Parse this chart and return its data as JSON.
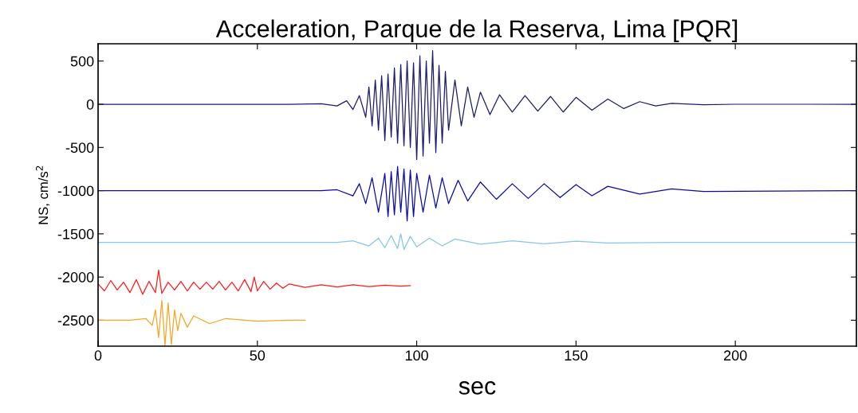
{
  "chart_data": {
    "type": "line",
    "title": "Acceleration, Parque de la Reserva, Lima [PQR]",
    "xlabel": "sec",
    "ylabel": "NS, cm/s$^{2}$",
    "xlim": [
      0,
      238
    ],
    "ylim": [
      -2800,
      700
    ],
    "xticks": [
      0,
      50,
      100,
      150,
      200
    ],
    "yticks": [
      500,
      0,
      -500,
      -1000,
      -1500,
      -2000,
      -2500
    ],
    "grid": false,
    "marker": "none",
    "line_style": "solid",
    "series": [
      {
        "color": "#1b1b6b",
        "x": [
          0,
          60,
          70,
          75,
          78,
          80,
          82,
          84,
          85,
          86,
          87,
          88,
          89,
          90,
          91,
          92,
          93,
          94,
          95,
          96,
          97,
          98,
          99,
          100,
          101,
          102,
          103,
          104,
          105,
          106,
          107,
          108,
          109,
          110,
          112,
          114,
          116,
          118,
          120,
          123,
          126,
          130,
          134,
          138,
          142,
          146,
          150,
          155,
          160,
          165,
          170,
          175,
          180,
          190,
          200,
          238
        ],
        "values": [
          0,
          0,
          5,
          -20,
          40,
          -60,
          100,
          -150,
          200,
          -250,
          280,
          -300,
          330,
          -420,
          350,
          -380,
          420,
          -450,
          460,
          -480,
          500,
          -500,
          480,
          -640,
          560,
          -600,
          500,
          -450,
          620,
          -560,
          450,
          -450,
          380,
          -300,
          280,
          -250,
          200,
          -150,
          140,
          -120,
          110,
          -90,
          100,
          -80,
          90,
          -90,
          80,
          -70,
          60,
          -50,
          30,
          -20,
          10,
          -5,
          0,
          0
        ]
      },
      {
        "color": "#0a0aa8",
        "x": [
          0,
          70,
          75,
          80,
          82,
          84,
          86,
          88,
          90,
          91,
          92,
          93,
          94,
          95,
          96,
          97,
          98,
          99,
          100,
          102,
          104,
          106,
          108,
          110,
          113,
          116,
          120,
          125,
          130,
          135,
          140,
          145,
          150,
          155,
          160,
          170,
          180,
          190,
          238
        ],
        "values": [
          -1000,
          -1000,
          -990,
          -1060,
          -920,
          -1150,
          -850,
          -1250,
          -800,
          -1300,
          -780,
          -1280,
          -720,
          -1250,
          -750,
          -1350,
          -760,
          -1300,
          -800,
          -1250,
          -820,
          -1200,
          -850,
          -1150,
          -880,
          -1120,
          -900,
          -1100,
          -920,
          -1090,
          -920,
          -1080,
          -930,
          -1060,
          -950,
          -1040,
          -980,
          -1010,
          -1000
        ]
      },
      {
        "color": "#87c6e6",
        "x": [
          0,
          75,
          80,
          85,
          88,
          90,
          92,
          94,
          95,
          96,
          98,
          100,
          104,
          108,
          112,
          120,
          130,
          140,
          150,
          160,
          180,
          238
        ],
        "values": [
          -1600,
          -1600,
          -1580,
          -1640,
          -1550,
          -1660,
          -1520,
          -1670,
          -1500,
          -1680,
          -1530,
          -1650,
          -1550,
          -1640,
          -1560,
          -1620,
          -1580,
          -1615,
          -1585,
          -1605,
          -1600,
          -1600
        ]
      },
      {
        "color": "#ff1a1a",
        "x": [
          0,
          2,
          4,
          6,
          8,
          10,
          12,
          14,
          16,
          18,
          19,
          20,
          22,
          24,
          26,
          28,
          30,
          32,
          34,
          36,
          38,
          40,
          42,
          44,
          46,
          48,
          49,
          50,
          52,
          54,
          56,
          58,
          60,
          65,
          70,
          75,
          80,
          85,
          90,
          95,
          98
        ],
        "values": [
          -2080,
          -2160,
          -2040,
          -2150,
          -2060,
          -2180,
          -2030,
          -2200,
          -2050,
          -2180,
          -1920,
          -2190,
          -2060,
          -2150,
          -2050,
          -2160,
          -2060,
          -2140,
          -2060,
          -2140,
          -2050,
          -2150,
          -2060,
          -2160,
          -2030,
          -2170,
          -2000,
          -2160,
          -2050,
          -2140,
          -2070,
          -2130,
          -2080,
          -2120,
          -2090,
          -2115,
          -2090,
          -2110,
          -2095,
          -2105,
          -2100
        ]
      },
      {
        "color": "#f5a623",
        "x": [
          0,
          10,
          15,
          17,
          18,
          19,
          20,
          21,
          22,
          23,
          24,
          25,
          26,
          28,
          30,
          35,
          40,
          50,
          60,
          65
        ],
        "values": [
          -2500,
          -2500,
          -2480,
          -2560,
          -2380,
          -2700,
          -2270,
          -2790,
          -2300,
          -2780,
          -2380,
          -2620,
          -2420,
          -2580,
          -2450,
          -2540,
          -2480,
          -2510,
          -2500,
          -2500
        ]
      }
    ]
  }
}
